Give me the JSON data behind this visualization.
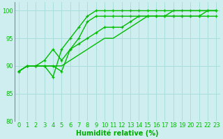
{
  "background_color": "#ceeef0",
  "grid_color": "#aadddd",
  "line_color": "#00bb00",
  "xlabel": "Humidité relative (%)",
  "xlabel_color": "#00aa00",
  "ylim": [
    80,
    101.5
  ],
  "xlim": [
    -0.5,
    23.5
  ],
  "yticks": [
    80,
    85,
    90,
    95,
    100
  ],
  "xticks": [
    0,
    1,
    2,
    3,
    4,
    5,
    6,
    7,
    8,
    9,
    10,
    11,
    12,
    13,
    14,
    15,
    16,
    17,
    18,
    19,
    20,
    21,
    22,
    23
  ],
  "series": [
    [
      89,
      90,
      90,
      90,
      90,
      89,
      93,
      95,
      98,
      99,
      99,
      99,
      99,
      99,
      99,
      99,
      99,
      99,
      99,
      99,
      99,
      99,
      99,
      99
    ],
    [
      89,
      90,
      90,
      90,
      88,
      93,
      95,
      97,
      99,
      100,
      100,
      100,
      100,
      100,
      100,
      100,
      100,
      100,
      100,
      100,
      100,
      100,
      100,
      100
    ],
    [
      89,
      90,
      90,
      91,
      93,
      91,
      93,
      94,
      95,
      96,
      97,
      97,
      97,
      98,
      99,
      99,
      99,
      99,
      99,
      99,
      99,
      99,
      100,
      100
    ],
    [
      89,
      90,
      90,
      90,
      90,
      90,
      91,
      92,
      93,
      94,
      95,
      95,
      96,
      97,
      98,
      99,
      99,
      99,
      100,
      100,
      100,
      100,
      100,
      100
    ]
  ],
  "marker_series": [
    0,
    1,
    2
  ],
  "tick_fontsize": 6,
  "xlabel_fontsize": 7
}
